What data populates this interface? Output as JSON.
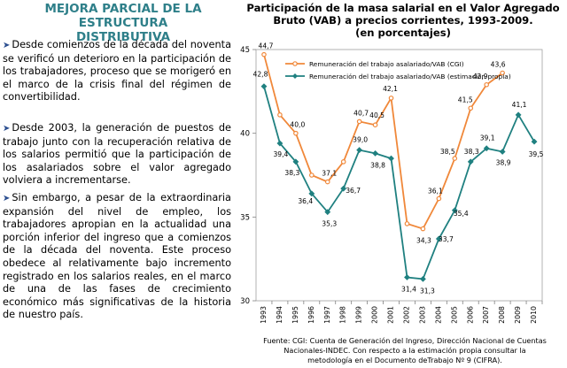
{
  "left_title": [
    "MEJORA PARCIAL DE LA ESTRUCTURA",
    "DISTRIBUTIVA"
  ],
  "paragraphs": [
    "Desde comienzos de la década del noventa se verificó un deterioro en la participación de los trabajadores, proceso que se morigeró en el marco de la crisis final del régimen de convertibilidad.",
    "Desde 2003, la generación de puestos de trabajo junto con la recuperación relativa de los salarios permitió que la participación de los asalariados sobre el valor agregado volviera a incrementarse.",
    "Sin embargo, a pesar de la extraordinaria expansión del nivel de empleo, los trabajadores apropian en la actualidad una porción inferior del ingreso que a comienzos de la década del noventa. Este proceso obedece al relativamente bajo incremento registrado en los salarios reales, en el marco de una de las fases de crecimiento económico más significativas de la historia de nuestro país."
  ],
  "source": [
    "Fuente: CGI: Cuenta de Generación del Ingreso, Dirección Nacional de Cuentas",
    "Nacionales-INDEC. Con respecto a la estimación propia consultar la",
    "metodología en el Documento deTrabajo Nº 9 (CIFRA)."
  ],
  "colors": {
    "accent": "#2e7f89",
    "bullet": "#2a4d8f",
    "orange": "#f0883a",
    "teal": "#1f8080"
  },
  "chart_data": {
    "type": "line",
    "title": [
      "Participación de la masa salarial en el Valor Agregado",
      "Bruto (VAB) a precios corrientes, 1993-2009.",
      "(en porcentajes)"
    ],
    "x": [
      "1993",
      "1994",
      "1995",
      "1996",
      "1997",
      "1998",
      "1999",
      "2000",
      "2001",
      "2002",
      "2003",
      "2004",
      "2005",
      "2006",
      "2007",
      "2008",
      "2009",
      "2010"
    ],
    "ylim": [
      30,
      45
    ],
    "yticks": [
      "30",
      "35",
      "40",
      "45"
    ],
    "grid": false,
    "legend_position": "top-left",
    "series": [
      {
        "name": "Remuneración del trabajo asalariado/VAB (CGI)",
        "color": "#f0883a",
        "values": [
          44.7,
          41.1,
          40.0,
          37.5,
          37.1,
          38.3,
          40.7,
          40.5,
          42.1,
          34.6,
          34.3,
          36.1,
          38.5,
          41.5,
          42.9,
          43.6,
          null,
          null
        ],
        "labels": [
          "44,7",
          "",
          "40,0",
          "",
          "37,1",
          "",
          "40,7",
          "40,5",
          "42,1",
          "",
          "34,3",
          "36,1",
          "38,5",
          "41,5",
          "42,9",
          "43,6",
          "",
          ""
        ]
      },
      {
        "name": "Remuneración del trabajo asalariado/VAB (estimación propia)",
        "color": "#1f8080",
        "values": [
          42.8,
          39.4,
          38.3,
          36.4,
          35.3,
          36.7,
          39.0,
          38.8,
          38.5,
          31.4,
          31.3,
          33.7,
          35.4,
          38.3,
          39.1,
          38.9,
          41.1,
          39.5
        ],
        "labels": [
          "42,8",
          "39,4",
          "38,3",
          "36,4",
          "35,3",
          "36,7",
          "39,0",
          "38,8",
          "",
          "31,4",
          "31,3",
          "33,7",
          "35,4",
          "38,3",
          "39,1",
          "38,9",
          "41,1",
          "39,5"
        ]
      }
    ]
  }
}
